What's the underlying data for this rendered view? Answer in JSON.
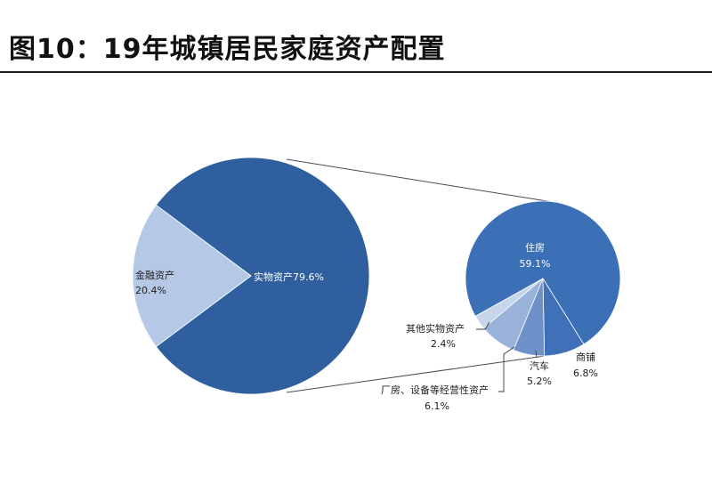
{
  "header": {
    "title": "图10：19年城镇居民家庭资产配置"
  },
  "colors": {
    "navy": "#2f5f9e",
    "light_blue": "#b5c9e6",
    "house": "#3b6fb6",
    "shop": "#4070b8",
    "car": "#6f91ca",
    "plant": "#98b2da",
    "other": "#c6d5ea",
    "connector": "#4a4a5a",
    "leader": "#3a3a3a"
  },
  "chart_data": [
    {
      "type": "pie",
      "title": "",
      "slices": [
        {
          "label": "实物资产",
          "value": 79.6,
          "value_text": "79.6%",
          "color": "#2f5f9e"
        },
        {
          "label": "金融资产",
          "value": 20.4,
          "value_text": "20.4%",
          "color": "#b5c9e6"
        }
      ],
      "exploded_slice": "实物资产"
    },
    {
      "type": "pie",
      "title": "",
      "breakdown_of": "实物资产",
      "slices": [
        {
          "label": "住房",
          "value": 59.1,
          "value_text": "59.1%",
          "color": "#3b6fb6"
        },
        {
          "label": "商铺",
          "value": 6.8,
          "value_text": "6.8%",
          "color": "#4070b8"
        },
        {
          "label": "汽车",
          "value": 5.2,
          "value_text": "5.2%",
          "color": "#6f91ca"
        },
        {
          "label": "厂房、设备等经营性资产",
          "value": 6.1,
          "value_text": "6.1%",
          "color": "#98b2da"
        },
        {
          "label": "其他实物资产",
          "value": 2.4,
          "value_text": "2.4%",
          "color": "#c6d5ea"
        }
      ]
    }
  ]
}
